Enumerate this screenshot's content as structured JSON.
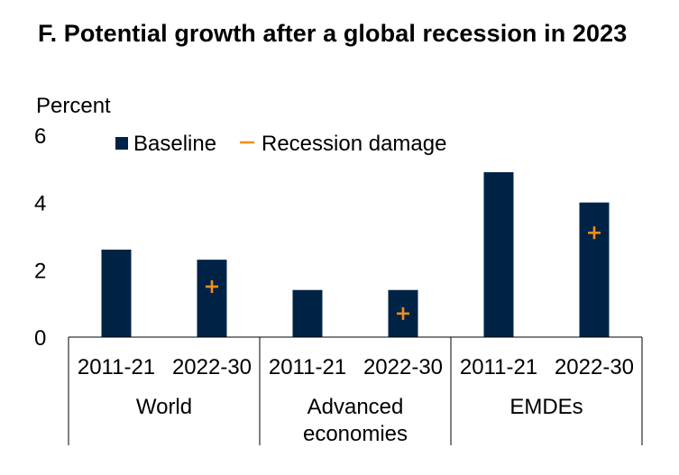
{
  "chart_data": {
    "type": "bar",
    "title": "F. Potential growth after a global recession in 2023",
    "ylabel": "Percent",
    "ylim": [
      0,
      6
    ],
    "yticks": [
      0,
      2,
      4,
      6
    ],
    "groups": [
      {
        "label_lines": [
          "World"
        ],
        "categories": [
          "2011-21",
          "2022-30"
        ]
      },
      {
        "label_lines": [
          "Advanced",
          "economies"
        ],
        "categories": [
          "2011-21",
          "2022-30"
        ]
      },
      {
        "label_lines": [
          "EMDEs"
        ],
        "categories": [
          "2011-21",
          "2022-30"
        ]
      }
    ],
    "series": [
      {
        "name": "Baseline",
        "kind": "bar",
        "color": "#002345",
        "values": [
          2.6,
          2.3,
          1.4,
          1.4,
          4.9,
          4.0
        ]
      },
      {
        "name": "Recession damage",
        "kind": "marker",
        "marker": "+",
        "color": "#F28E1C",
        "values": [
          null,
          1.5,
          null,
          0.7,
          null,
          3.1
        ]
      }
    ],
    "legend": "top-left"
  }
}
